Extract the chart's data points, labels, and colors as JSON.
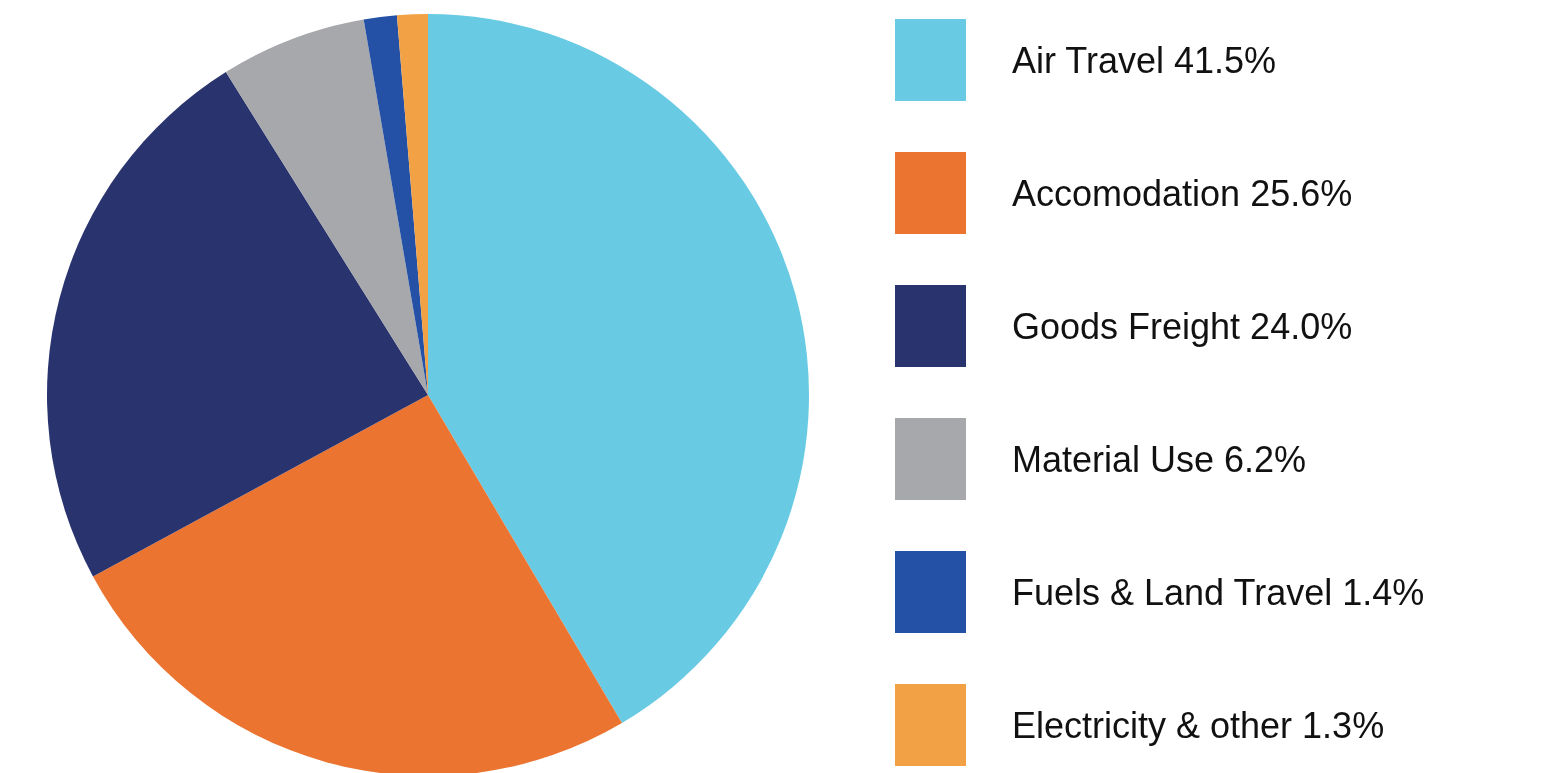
{
  "chart_data": {
    "type": "pie",
    "categories": [
      "Air Travel",
      "Accomodation",
      "Goods Freight",
      "Material Use",
      "Fuels & Land Travel",
      "Electricity & other"
    ],
    "values": [
      41.5,
      25.6,
      24.0,
      6.2,
      1.4,
      1.3
    ],
    "value_labels": [
      "41.5%",
      "25.6%",
      "24.0%",
      "6.2%",
      "1.4%",
      "1.3%"
    ],
    "colors": [
      "#68cae3",
      "#ec7431",
      "#29336e",
      "#a7a8ab",
      "#2451a5",
      "#f2a245"
    ],
    "legend": "right"
  }
}
